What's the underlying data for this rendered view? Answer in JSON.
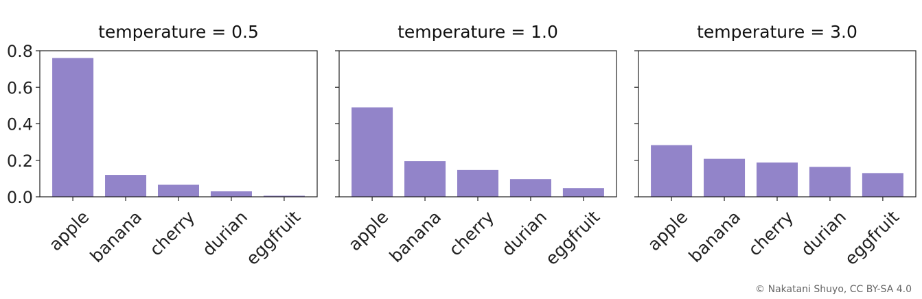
{
  "chart_data": [
    {
      "type": "bar",
      "title": "temperature = 0.5",
      "categories": [
        "apple",
        "banana",
        "cherry",
        "durian",
        "eggfruit"
      ],
      "values": [
        0.76,
        0.12,
        0.066,
        0.03,
        0.006
      ],
      "xlabel": "",
      "ylabel": "",
      "ylim": [
        0,
        0.8
      ],
      "yticks": [
        "0.0",
        "0.2",
        "0.4",
        "0.6",
        "0.8"
      ],
      "grid": false
    },
    {
      "type": "bar",
      "title": "temperature = 1.0",
      "categories": [
        "apple",
        "banana",
        "cherry",
        "durian",
        "eggfruit"
      ],
      "values": [
        0.49,
        0.195,
        0.147,
        0.097,
        0.048
      ],
      "xlabel": "",
      "ylabel": "",
      "ylim": [
        0,
        0.8
      ],
      "grid": false
    },
    {
      "type": "bar",
      "title": "temperature = 3.0",
      "categories": [
        "apple",
        "banana",
        "cherry",
        "durian",
        "eggfruit"
      ],
      "values": [
        0.283,
        0.208,
        0.188,
        0.164,
        0.13
      ],
      "xlabel": "",
      "ylabel": "",
      "ylim": [
        0,
        0.8
      ],
      "grid": false
    }
  ],
  "bar_color": "#9284c9",
  "credit": "© Nakatani Shuyo, CC BY-SA 4.0"
}
